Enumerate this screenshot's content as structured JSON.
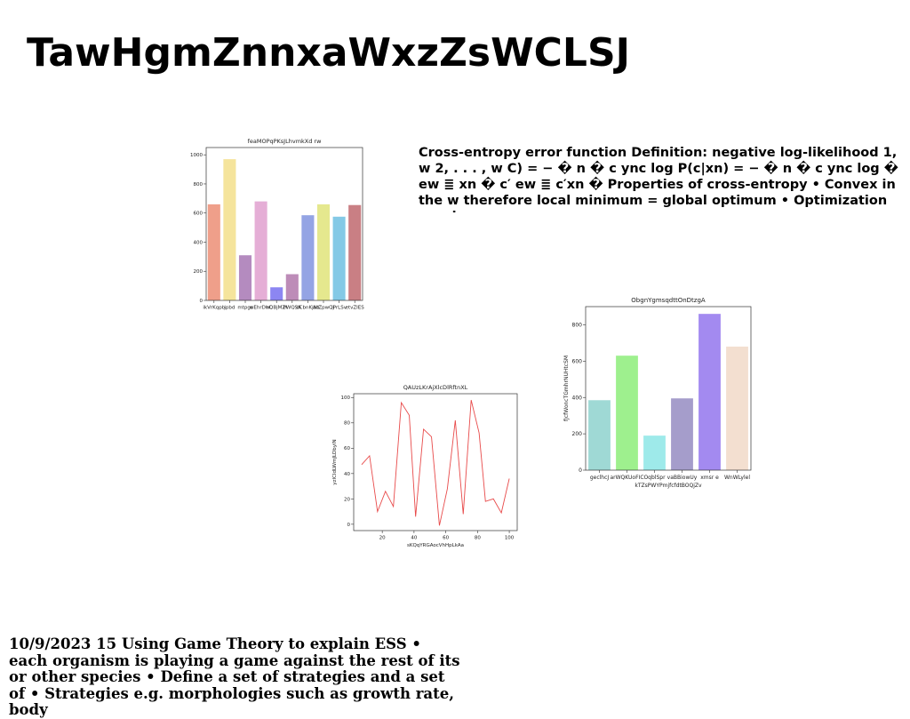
{
  "title": "TawHgmZnnxaWxzZsWCLSJ",
  "body_text": "Cross-entropy error function Definition: negative log-likelihood 1, w 2, . . . , w C) = − � n � c ync log P(c|xn) = − � n � c ync log � ew ≣ xn � c′ ew ≣ c′xn � Properties of cross-entropy • Convex in the w therefore local minimum = global optimum • Optimization requires",
  "footer_text": "10/9/2023 15 Using Game Theory to explain ESS • each organism is playing a game against the rest of its or other species • Define a set of strategies and a set of • Strategies e.g. morphologies such as growth rate, body",
  "chart_data": [
    {
      "type": "bar",
      "title": "feaMOPqPKsJLhvmkXd rw",
      "categories": [
        "ikVrKqpb",
        "jpbd",
        "mtpgs",
        "wEhrDhC",
        "nQBjMZI",
        "PWQSA",
        "dCbnKjlW",
        "acZpwQj",
        "iPrLSv",
        "etvZIES"
      ],
      "values": [
        660,
        970,
        310,
        680,
        90,
        180,
        585,
        660,
        575,
        655
      ],
      "colors": [
        "#ef9f8a",
        "#f5e49c",
        "#b48bbf",
        "#e5aed6",
        "#8c86f2",
        "#bd8cb8",
        "#94a4e4",
        "#e5e88e",
        "#84c9e6",
        "#c97f84"
      ],
      "ylim": [
        0,
        1050
      ],
      "yticks": [
        0,
        200,
        400,
        600,
        800,
        1000
      ]
    },
    {
      "type": "line",
      "title": "QAUzLKrAjXlcDlRftnXL",
      "x_label": "sKQqYRGAocVhHpLkAa",
      "y_label": "yzlCIdLWmJLDbylN",
      "x": [
        7,
        12,
        17,
        22,
        27,
        32,
        37,
        41,
        46,
        51,
        56,
        61,
        66,
        71,
        76,
        81,
        85,
        90,
        95,
        100
      ],
      "values": [
        47,
        54,
        10,
        26,
        14,
        96,
        86,
        6,
        75,
        69,
        -1,
        28,
        82,
        8,
        98,
        72,
        18,
        20,
        9,
        36
      ],
      "color": "#e84a4a",
      "xlim": [
        2,
        105
      ],
      "xticks": [
        20,
        40,
        60,
        80,
        100
      ],
      "ylim": [
        -5,
        103
      ],
      "yticks": [
        0,
        20,
        40,
        60,
        80,
        100
      ]
    },
    {
      "type": "bar",
      "title": "ObgnYgmsqdttOnDtzgA",
      "x_label": "kTZsPWYPmjfcfdtBOQjZv",
      "y_label": "fJcfWoncTGmhrNUHtcSM",
      "categories": [
        "geclhcJ",
        "arWQKUoFIC",
        "OqblSpr",
        "vaBBiowUy",
        "xmsr e",
        "WnWLylel"
      ],
      "values": [
        385,
        630,
        190,
        395,
        860,
        680
      ],
      "colors": [
        "#9fd9d5",
        "#9ef08e",
        "#9eeaea",
        "#a59dcb",
        "#a38af0",
        "#f3dfd0"
      ],
      "ylim": [
        0,
        900
      ],
      "yticks": [
        0,
        200,
        400,
        600,
        800
      ]
    }
  ]
}
